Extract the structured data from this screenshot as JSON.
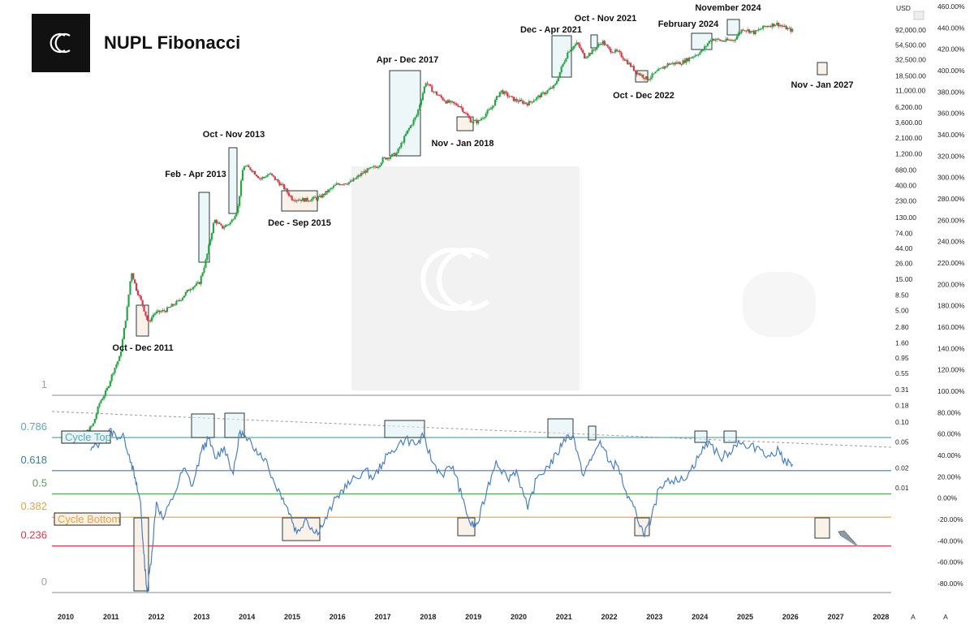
{
  "header": {
    "title": "NUPL Fibonacci",
    "logo_icon": "cc-logo-icon"
  },
  "chart_data": [
    {
      "type": "candlestick",
      "title": "NUPL Fibonacci",
      "y_scale": "log",
      "y_unit_label": "USD",
      "price_ticks": [
        "92,000.00",
        "54,500.00",
        "32,500.00",
        "18,500.00",
        "11,000.00",
        "6,200.00",
        "3,600.00",
        "2,100.00",
        "1,200.00",
        "680.00",
        "400.00",
        "230.00",
        "130.00",
        "74.00",
        "44.00",
        "26.00",
        "15.00",
        "8.50",
        "5.00",
        "2.80",
        "1.60",
        "0.95",
        "0.55",
        "0.31",
        "0.18",
        "0.10",
        "0.05",
        "0.02",
        "0.01"
      ],
      "price_tick_values": [
        92000,
        54500,
        32500,
        18500,
        11000,
        6200,
        3600,
        2100,
        1200,
        680,
        400,
        230,
        130,
        74,
        44,
        26,
        15,
        8.5,
        5,
        2.8,
        1.6,
        0.95,
        0.55,
        0.31,
        0.18,
        0.1,
        0.05,
        0.02,
        0.01
      ],
      "percent_ticks": [
        "460.00%",
        "440.00%",
        "420.00%",
        "400.00%",
        "380.00%",
        "360.00%",
        "340.00%",
        "320.00%",
        "300.00%",
        "280.00%",
        "260.00%",
        "240.00%",
        "220.00%",
        "200.00%",
        "180.00%",
        "160.00%",
        "140.00%",
        "120.00%",
        "100.00%",
        "80.00%",
        "60.00%",
        "40.00%",
        "20.00%",
        "0.00%",
        "-20.00%",
        "-40.00%",
        "-60.00%",
        "-80.00%"
      ],
      "x_ticks": [
        "2010",
        "2011",
        "2012",
        "2013",
        "2014",
        "2015",
        "2016",
        "2017",
        "2018",
        "2019",
        "2020",
        "2021",
        "2022",
        "2023",
        "2024",
        "2025",
        "2026",
        "2027",
        "2028"
      ],
      "x_extra_ticks": [
        "A",
        "A"
      ],
      "price_path": [
        [
          2010.0,
          0.05
        ],
        [
          2010.2,
          0.06
        ],
        [
          2010.45,
          0.07
        ],
        [
          2010.6,
          0.09
        ],
        [
          2010.75,
          0.2
        ],
        [
          2010.9,
          0.3
        ],
        [
          2011.05,
          0.6
        ],
        [
          2011.2,
          1.0
        ],
        [
          2011.35,
          5
        ],
        [
          2011.45,
          20
        ],
        [
          2011.55,
          11
        ],
        [
          2011.7,
          6
        ],
        [
          2011.82,
          3.2
        ],
        [
          2011.95,
          4.5
        ],
        [
          2012.2,
          5
        ],
        [
          2012.5,
          7
        ],
        [
          2012.75,
          11
        ],
        [
          2012.95,
          13
        ],
        [
          2013.1,
          30
        ],
        [
          2013.28,
          120
        ],
        [
          2013.45,
          90
        ],
        [
          2013.65,
          110
        ],
        [
          2013.8,
          180
        ],
        [
          2013.92,
          800
        ],
        [
          2014.1,
          700
        ],
        [
          2014.3,
          500
        ],
        [
          2014.5,
          600
        ],
        [
          2014.8,
          380
        ],
        [
          2015.0,
          250
        ],
        [
          2015.3,
          240
        ],
        [
          2015.6,
          260
        ],
        [
          2015.8,
          330
        ],
        [
          2016.0,
          420
        ],
        [
          2016.3,
          450
        ],
        [
          2016.6,
          650
        ],
        [
          2016.9,
          800
        ],
        [
          2017.0,
          1000
        ],
        [
          2017.3,
          1200
        ],
        [
          2017.55,
          2700
        ],
        [
          2017.75,
          4700
        ],
        [
          2017.95,
          15000
        ],
        [
          2018.1,
          11000
        ],
        [
          2018.4,
          7500
        ],
        [
          2018.7,
          6500
        ],
        [
          2018.95,
          3800
        ],
        [
          2019.1,
          3700
        ],
        [
          2019.4,
          6000
        ],
        [
          2019.6,
          11000
        ],
        [
          2019.9,
          8000
        ],
        [
          2020.2,
          7000
        ],
        [
          2020.5,
          9500
        ],
        [
          2020.8,
          13000
        ],
        [
          2020.95,
          25000
        ],
        [
          2021.1,
          45000
        ],
        [
          2021.3,
          58000
        ],
        [
          2021.45,
          36000
        ],
        [
          2021.6,
          42000
        ],
        [
          2021.85,
          62000
        ],
        [
          2022.0,
          46000
        ],
        [
          2022.2,
          42000
        ],
        [
          2022.4,
          30000
        ],
        [
          2022.6,
          21000
        ],
        [
          2022.85,
          16500
        ],
        [
          2023.0,
          20000
        ],
        [
          2023.3,
          28000
        ],
        [
          2023.6,
          29500
        ],
        [
          2023.85,
          37000
        ],
        [
          2024.05,
          44000
        ],
        [
          2024.25,
          68000
        ],
        [
          2024.5,
          63000
        ],
        [
          2024.75,
          65000
        ],
        [
          2024.95,
          97000
        ],
        [
          2025.2,
          84000
        ],
        [
          2025.45,
          105000
        ],
        [
          2025.7,
          115000
        ],
        [
          2025.95,
          95000
        ],
        [
          2026.05,
          90000
        ]
      ]
    },
    {
      "type": "line",
      "series": [
        {
          "name": "NUPL"
        }
      ],
      "y_scale": "linear",
      "fib_levels": [
        {
          "label": "1",
          "value": 1.0,
          "color": "#9aa3aa"
        },
        {
          "label": "0.786",
          "value": 0.786,
          "color": "#5fa7b5"
        },
        {
          "label": "0.618",
          "value": 0.618,
          "color": "#3f8090"
        },
        {
          "label": "0.5",
          "value": 0.5,
          "color": "#5b9b5b"
        },
        {
          "label": "0.382",
          "value": 0.382,
          "color": "#e8a33d"
        },
        {
          "label": "0.236",
          "value": 0.236,
          "color": "#d8394b"
        },
        {
          "label": "0",
          "value": 0.0,
          "color": "#9aa3aa"
        }
      ],
      "nupl_path": [
        [
          2010.55,
          0.72
        ],
        [
          2010.75,
          0.76
        ],
        [
          2010.95,
          0.82
        ],
        [
          2011.1,
          0.8
        ],
        [
          2011.3,
          0.78
        ],
        [
          2011.45,
          0.66
        ],
        [
          2011.55,
          0.55
        ],
        [
          2011.65,
          0.46
        ],
        [
          2011.72,
          0.2
        ],
        [
          2011.8,
          0.0
        ],
        [
          2011.9,
          0.2
        ],
        [
          2012.0,
          0.46
        ],
        [
          2012.15,
          0.37
        ],
        [
          2012.4,
          0.5
        ],
        [
          2012.6,
          0.63
        ],
        [
          2012.8,
          0.54
        ],
        [
          2013.0,
          0.72
        ],
        [
          2013.15,
          0.78
        ],
        [
          2013.3,
          0.68
        ],
        [
          2013.5,
          0.74
        ],
        [
          2013.7,
          0.6
        ],
        [
          2013.85,
          0.82
        ],
        [
          2014.0,
          0.77
        ],
        [
          2014.2,
          0.73
        ],
        [
          2014.4,
          0.68
        ],
        [
          2014.6,
          0.56
        ],
        [
          2014.8,
          0.48
        ],
        [
          2014.95,
          0.4
        ],
        [
          2015.1,
          0.3
        ],
        [
          2015.3,
          0.38
        ],
        [
          2015.5,
          0.3
        ],
        [
          2015.7,
          0.35
        ],
        [
          2015.9,
          0.45
        ],
        [
          2016.1,
          0.52
        ],
        [
          2016.3,
          0.56
        ],
        [
          2016.6,
          0.62
        ],
        [
          2016.8,
          0.58
        ],
        [
          2017.0,
          0.66
        ],
        [
          2017.2,
          0.72
        ],
        [
          2017.5,
          0.78
        ],
        [
          2017.75,
          0.75
        ],
        [
          2017.9,
          0.79
        ],
        [
          2018.1,
          0.66
        ],
        [
          2018.3,
          0.6
        ],
        [
          2018.55,
          0.64
        ],
        [
          2018.75,
          0.48
        ],
        [
          2018.95,
          0.34
        ],
        [
          2019.1,
          0.35
        ],
        [
          2019.3,
          0.52
        ],
        [
          2019.5,
          0.67
        ],
        [
          2019.75,
          0.58
        ],
        [
          2019.95,
          0.62
        ],
        [
          2020.2,
          0.42
        ],
        [
          2020.4,
          0.58
        ],
        [
          2020.65,
          0.64
        ],
        [
          2020.85,
          0.7
        ],
        [
          2021.0,
          0.78
        ],
        [
          2021.2,
          0.8
        ],
        [
          2021.4,
          0.6
        ],
        [
          2021.6,
          0.67
        ],
        [
          2021.8,
          0.77
        ],
        [
          2022.0,
          0.66
        ],
        [
          2022.2,
          0.64
        ],
        [
          2022.4,
          0.48
        ],
        [
          2022.6,
          0.4
        ],
        [
          2022.75,
          0.3
        ],
        [
          2022.9,
          0.34
        ],
        [
          2023.1,
          0.53
        ],
        [
          2023.3,
          0.58
        ],
        [
          2023.55,
          0.56
        ],
        [
          2023.8,
          0.62
        ],
        [
          2024.0,
          0.7
        ],
        [
          2024.2,
          0.77
        ],
        [
          2024.45,
          0.68
        ],
        [
          2024.65,
          0.71
        ],
        [
          2024.85,
          0.77
        ],
        [
          2025.05,
          0.73
        ],
        [
          2025.3,
          0.74
        ],
        [
          2025.55,
          0.69
        ],
        [
          2025.75,
          0.72
        ],
        [
          2025.9,
          0.66
        ],
        [
          2026.05,
          0.65
        ]
      ]
    }
  ],
  "labels": {
    "cycle_top": "Cycle Top",
    "cycle_bottom": "Cycle Bottom"
  },
  "annotations": [
    {
      "text": "Oct - Dec 2011"
    },
    {
      "text": "Feb - Apr 2013"
    },
    {
      "text": "Oct - Nov 2013"
    },
    {
      "text": "Dec - Sep 2015"
    },
    {
      "text": "Apr - Dec 2017"
    },
    {
      "text": "Nov - Jan 2018"
    },
    {
      "text": "Dec - Apr 2021"
    },
    {
      "text": "Oct - Nov 2021"
    },
    {
      "text": "Oct - Dec 2022"
    },
    {
      "text": "February 2024"
    },
    {
      "text": "November 2024"
    },
    {
      "text": "Nov - Jan 2027"
    }
  ],
  "colors": {
    "up": "#27a645",
    "down": "#d5394b",
    "nupl_line": "#4a7fc0",
    "top_box_stroke": "#2a3a3a",
    "top_box_fill": "#dff1f5",
    "bottom_box_fill": "#f8ebe0",
    "trend_line": "#999999",
    "arrow": "#8a9aa6"
  }
}
